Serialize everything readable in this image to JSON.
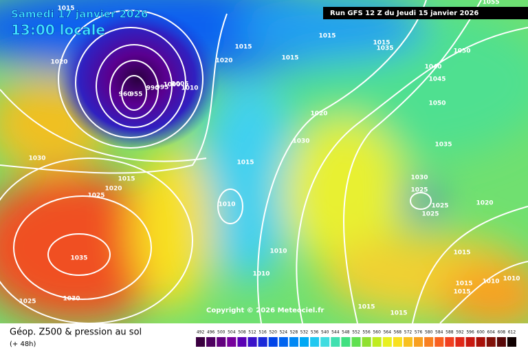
{
  "header": {
    "date": "Samedi 17 janvier 2026",
    "time": "13:00 locale",
    "run": "Run GFS 12 Z du Jeudi 15 janvier 2026",
    "copyright": "Copyright © 2026 Meteociel.fr"
  },
  "footer": {
    "title": "Géop. Z500 & pression au sol",
    "lead": "(+ 48h)"
  },
  "isobar_labels": [
    "1015",
    "1020",
    "1015",
    "1020",
    "1015",
    "1015",
    "1015",
    "1035",
    "1055",
    "1050",
    "1040",
    "1045",
    "1050",
    "1035",
    "1020",
    "1030",
    "1015",
    "1010",
    "1030",
    "1015",
    "1020",
    "1025",
    "1035",
    "1030",
    "1025",
    "1030",
    "1025",
    "1025",
    "1025",
    "1020",
    "1010",
    "1010",
    "1015",
    "1015",
    "1010",
    "1010",
    "1015",
    "1015",
    "1015",
    "960",
    "955",
    "990",
    "995",
    "1000",
    "1005",
    "1010"
  ],
  "scale": {
    "values": [
      492,
      496,
      500,
      504,
      508,
      512,
      516,
      520,
      524,
      528,
      532,
      536,
      540,
      544,
      548,
      552,
      556,
      560,
      564,
      568,
      572,
      576,
      580,
      584,
      588,
      592,
      596,
      600,
      604,
      608,
      612
    ],
    "colors": [
      "#3a0040",
      "#4e0060",
      "#62007e",
      "#76009c",
      "#5a00b4",
      "#3a10c8",
      "#1a28d8",
      "#0044e8",
      "#0064f0",
      "#0088f4",
      "#00a8f4",
      "#20c8f0",
      "#40dce0",
      "#40e0b0",
      "#40e080",
      "#60e050",
      "#90e030",
      "#c0ec20",
      "#e8f020",
      "#f8e020",
      "#f8c020",
      "#f8a020",
      "#f88020",
      "#f86020",
      "#f04020",
      "#e02818",
      "#c81810",
      "#a81008",
      "#801008",
      "#580808",
      "#100000"
    ]
  }
}
